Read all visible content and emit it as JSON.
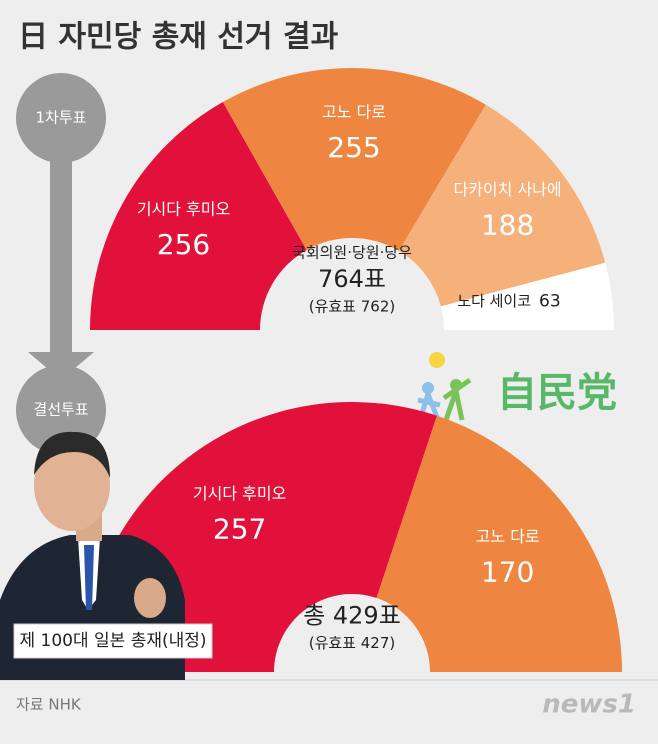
{
  "title": "日 자민당 총재 선거 결과",
  "source": "자료 NHK",
  "caption": "제 100대 일본 총재(내정)",
  "party_logo": "自民党",
  "news_logo": "news1",
  "chart_data": [
    {
      "type": "semicircle",
      "stage": "1차투표",
      "categories": [
        "기시다 후미오",
        "고노 다로",
        "다카이치 사나에",
        "노다 세이코"
      ],
      "values": [
        256,
        255,
        188,
        63
      ],
      "colors": [
        "#e2113c",
        "#ee8642",
        "#f6b07a",
        "#ffffff"
      ],
      "center_lines": [
        "국회의원·당원·당우",
        "764표",
        "(유효표 762)"
      ]
    },
    {
      "type": "semicircle",
      "stage": "결선투표",
      "categories": [
        "기시다 후미오",
        "고노 다로"
      ],
      "values": [
        257,
        170
      ],
      "colors": [
        "#e2113c",
        "#ee8642"
      ],
      "center_lines": [
        "총 429표",
        "(유효표 427)"
      ]
    }
  ]
}
